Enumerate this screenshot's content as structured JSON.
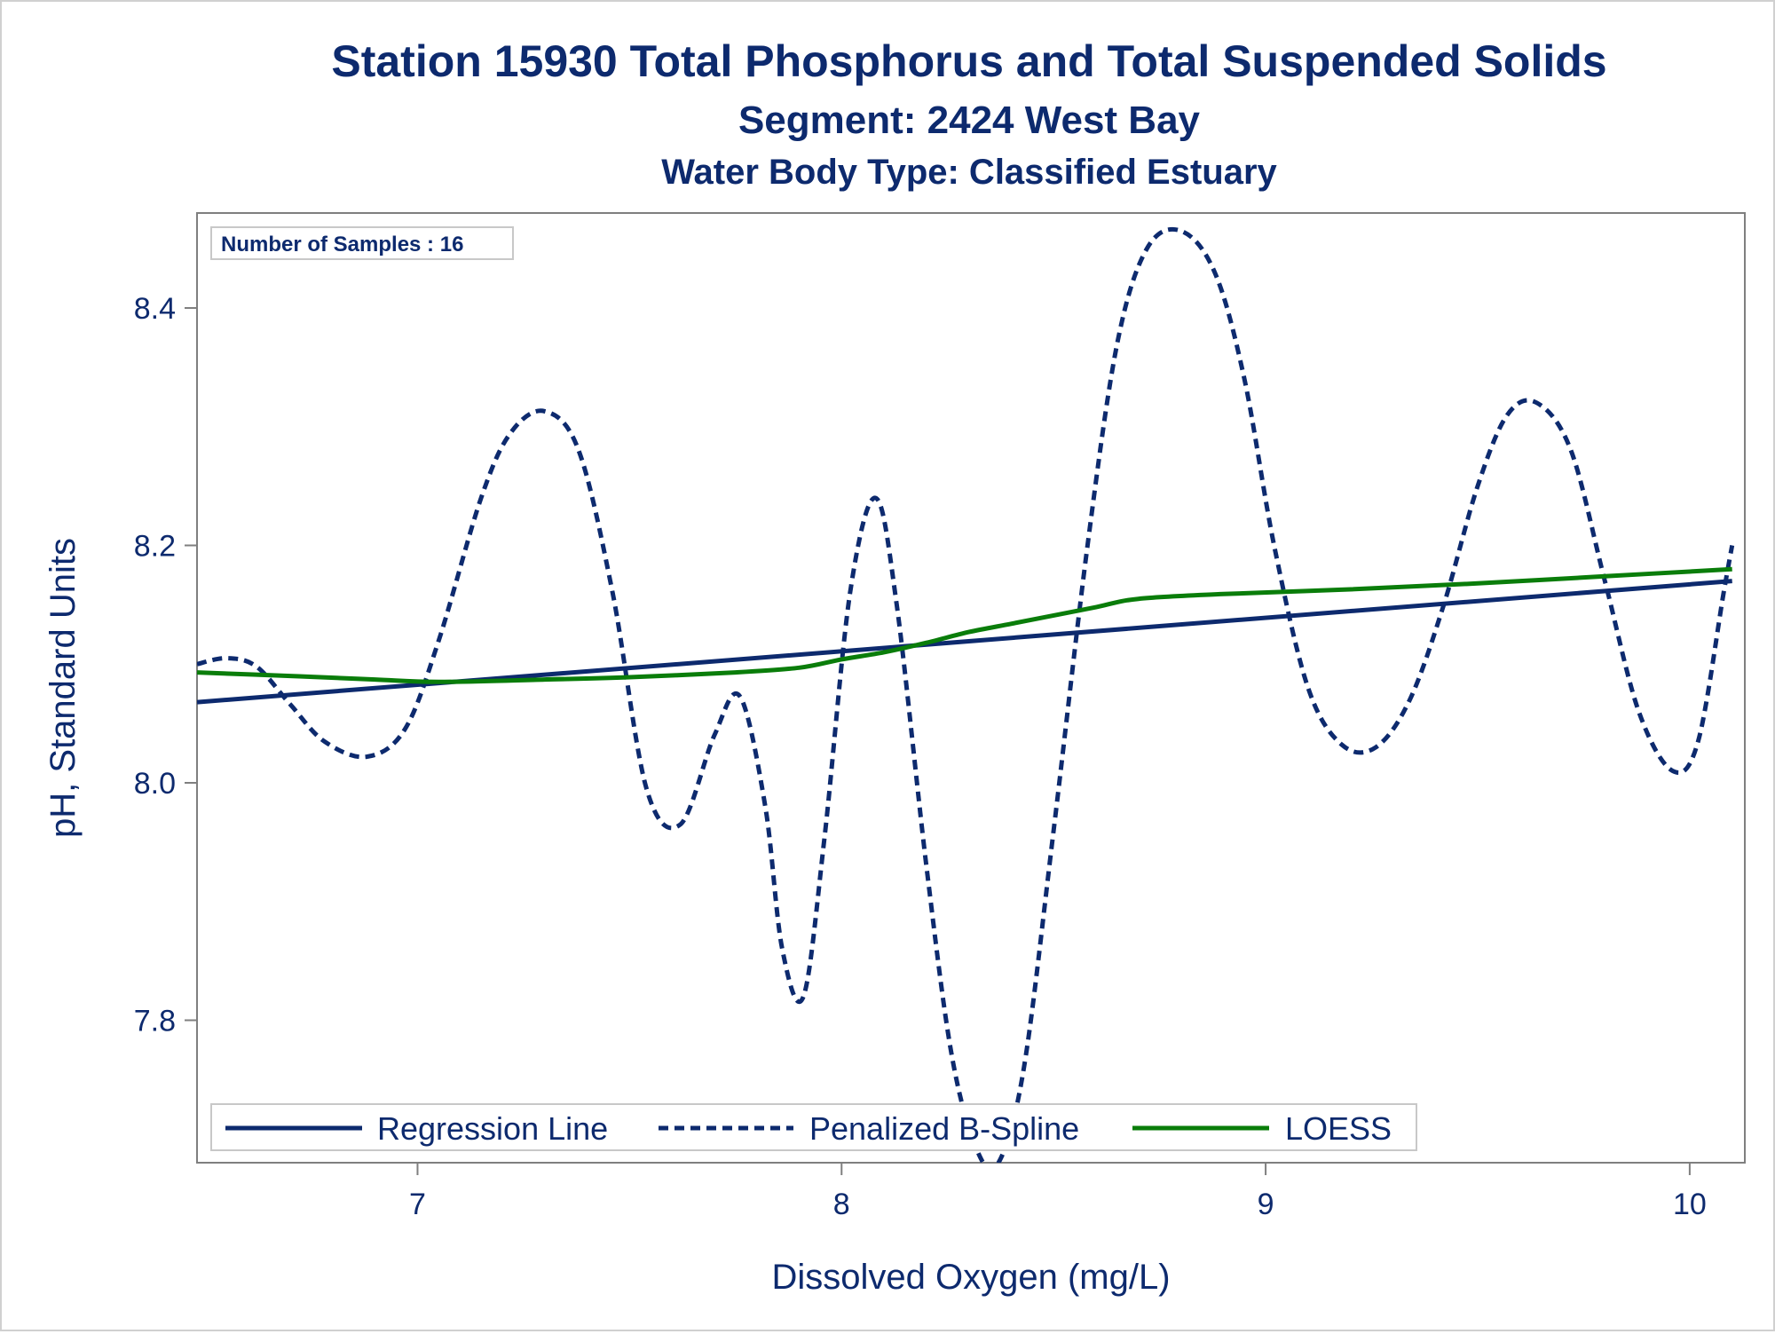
{
  "colors": {
    "text": "#0d2a6e",
    "regression": "#0d2a6e",
    "spline": "#0d2a6e",
    "loess": "#0a7d0a",
    "axis": "#7f7f7f",
    "frame_border": "#d0d0d0"
  },
  "chart_data": {
    "type": "line",
    "title": "Station 15930  Total Phosphorus and Total Suspended Solids",
    "subtitle": "Segment: 2424  West Bay",
    "subtitle2": "Water Body Type: Classified Estuary",
    "xlabel": "Dissolved Oxygen (mg/L)",
    "ylabel": "pH, Standard Units",
    "xlim": [
      6.48,
      10.13
    ],
    "ylim": [
      7.68,
      8.48
    ],
    "x_ticks": [
      7,
      8,
      9,
      10
    ],
    "x_tick_labels": [
      "7",
      "8",
      "9",
      "10"
    ],
    "y_ticks": [
      7.8,
      8.0,
      8.2,
      8.4
    ],
    "y_tick_labels": [
      "7.8",
      "8.0",
      "8.2",
      "8.4"
    ],
    "grid": false,
    "legend_position": "bottom-left-inside",
    "inset_label": "Number of Samples : 16",
    "series": [
      {
        "name": "Regression Line",
        "style": "solid",
        "x": [
          6.48,
          10.1
        ],
        "y": [
          8.068,
          8.17
        ]
      },
      {
        "name": "Penalized B-Spline",
        "style": "dashed",
        "x": [
          6.48,
          6.55,
          6.62,
          6.7,
          6.78,
          6.88,
          6.97,
          7.05,
          7.15,
          7.22,
          7.3,
          7.38,
          7.46,
          7.54,
          7.62,
          7.7,
          7.76,
          7.82,
          7.86,
          7.91,
          7.96,
          8.02,
          8.08,
          8.13,
          8.2,
          8.26,
          8.32,
          8.37,
          8.43,
          8.5,
          8.58,
          8.65,
          8.72,
          8.8,
          8.88,
          8.95,
          9.02,
          9.1,
          9.18,
          9.26,
          9.34,
          9.42,
          9.5,
          9.57,
          9.64,
          9.72,
          9.8,
          9.88,
          9.96,
          10.02,
          10.08,
          10.1
        ],
        "y": [
          8.1,
          8.105,
          8.098,
          8.066,
          8.035,
          8.022,
          8.045,
          8.12,
          8.24,
          8.295,
          8.313,
          8.28,
          8.16,
          7.995,
          7.965,
          8.04,
          8.073,
          7.98,
          7.86,
          7.82,
          7.955,
          8.16,
          8.24,
          8.15,
          7.93,
          7.77,
          7.69,
          7.68,
          7.76,
          7.96,
          8.2,
          8.37,
          8.45,
          8.465,
          8.43,
          8.34,
          8.2,
          8.08,
          8.032,
          8.03,
          8.07,
          8.15,
          8.25,
          8.31,
          8.32,
          8.28,
          8.17,
          8.06,
          8.01,
          8.035,
          8.16,
          8.2
        ]
      },
      {
        "name": "LOESS",
        "style": "solid",
        "x": [
          6.48,
          6.7,
          6.9,
          7.05,
          7.3,
          7.5,
          7.75,
          7.9,
          8.0,
          8.1,
          8.2,
          8.3,
          8.4,
          8.5,
          8.6,
          8.7,
          8.9,
          9.2,
          9.5,
          9.8,
          10.1
        ],
        "y": [
          8.093,
          8.09,
          8.087,
          8.085,
          8.087,
          8.089,
          8.093,
          8.097,
          8.104,
          8.11,
          8.118,
          8.127,
          8.134,
          8.141,
          8.148,
          8.155,
          8.159,
          8.163,
          8.168,
          8.174,
          8.18
        ]
      }
    ]
  }
}
